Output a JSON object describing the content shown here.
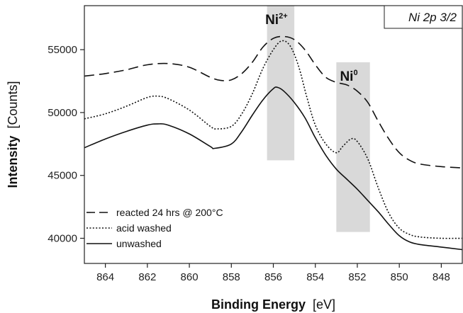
{
  "chart_data": {
    "type": "line",
    "title": "",
    "corner_label": "Ni 2p 3/2",
    "xlabel_bold": "Binding Energy",
    "xlabel_unit": "[eV]",
    "ylabel_bold": "Intensity",
    "ylabel_unit": "[Counts]",
    "xlim": [
      865,
      847
    ],
    "ylim": [
      38000,
      58500
    ],
    "x_ticks": [
      864,
      862,
      860,
      858,
      856,
      854,
      852,
      850,
      848
    ],
    "x_tick_labels": [
      "864",
      "862",
      "860",
      "858",
      "856",
      "854",
      "852",
      "850",
      "848"
    ],
    "y_ticks": [
      40000,
      45000,
      50000,
      55000
    ],
    "y_tick_labels": [
      "40000",
      "45000",
      "50000",
      "55000"
    ],
    "grid": false,
    "legend_position": "bottom-left",
    "bands": [
      {
        "x_range": [
          856.3,
          855.0
        ],
        "y_range": [
          46200,
          58500
        ],
        "label_main": "Ni",
        "label_sup": "2+"
      },
      {
        "x_range": [
          853.0,
          851.4
        ],
        "y_range": [
          40500,
          54000
        ],
        "label_main": "Ni",
        "label_sup": "0"
      }
    ],
    "series": [
      {
        "name": "reacted 24 hrs @ 200°C",
        "style": "dashed",
        "points": [
          [
            865,
            52900
          ],
          [
            864,
            53100
          ],
          [
            863,
            53400
          ],
          [
            862,
            53800
          ],
          [
            861,
            53900
          ],
          [
            860,
            53600
          ],
          [
            859,
            52800
          ],
          [
            858.5,
            52550
          ],
          [
            858,
            52600
          ],
          [
            857.5,
            53100
          ],
          [
            857,
            54000
          ],
          [
            856.5,
            55200
          ],
          [
            856,
            55900
          ],
          [
            855.5,
            56050
          ],
          [
            855,
            55800
          ],
          [
            854.5,
            55000
          ],
          [
            854,
            53800
          ],
          [
            853.5,
            52800
          ],
          [
            853,
            52400
          ],
          [
            852.5,
            52200
          ],
          [
            852,
            51700
          ],
          [
            851.5,
            50800
          ],
          [
            851,
            49300
          ],
          [
            850.5,
            47900
          ],
          [
            850,
            46800
          ],
          [
            849.5,
            46200
          ],
          [
            849,
            45900
          ],
          [
            848,
            45700
          ],
          [
            847,
            45600
          ]
        ]
      },
      {
        "name": "acid washed",
        "style": "dotted",
        "points": [
          [
            865,
            49500
          ],
          [
            864,
            49900
          ],
          [
            863,
            50500
          ],
          [
            862,
            51200
          ],
          [
            861.5,
            51300
          ],
          [
            861,
            51100
          ],
          [
            860,
            50200
          ],
          [
            859,
            48900
          ],
          [
            858.7,
            48700
          ],
          [
            858,
            48900
          ],
          [
            857.5,
            49900
          ],
          [
            857,
            51500
          ],
          [
            856.5,
            53500
          ],
          [
            856,
            55000
          ],
          [
            855.6,
            55700
          ],
          [
            855.2,
            55300
          ],
          [
            854.8,
            53700
          ],
          [
            854.4,
            51200
          ],
          [
            854,
            49000
          ],
          [
            853.5,
            47500
          ],
          [
            853,
            46800
          ],
          [
            852.7,
            47300
          ],
          [
            852.3,
            47900
          ],
          [
            852,
            47700
          ],
          [
            851.5,
            46300
          ],
          [
            851,
            44000
          ],
          [
            850.5,
            42000
          ],
          [
            850,
            40800
          ],
          [
            849.5,
            40300
          ],
          [
            849,
            40100
          ],
          [
            848,
            40000
          ],
          [
            847,
            40000
          ]
        ]
      },
      {
        "name": "unwashed",
        "style": "solid",
        "points": [
          [
            865,
            47200
          ],
          [
            864,
            47900
          ],
          [
            863,
            48500
          ],
          [
            862,
            49000
          ],
          [
            861.5,
            49100
          ],
          [
            861,
            49000
          ],
          [
            860,
            48300
          ],
          [
            859,
            47300
          ],
          [
            858.8,
            47150
          ],
          [
            858,
            47500
          ],
          [
            857.5,
            48500
          ],
          [
            857,
            49800
          ],
          [
            856.5,
            51000
          ],
          [
            856,
            51900
          ],
          [
            855.8,
            52000
          ],
          [
            855.5,
            51700
          ],
          [
            855,
            50800
          ],
          [
            854.5,
            49600
          ],
          [
            854,
            48000
          ],
          [
            853.5,
            46600
          ],
          [
            853,
            45500
          ],
          [
            852.5,
            44700
          ],
          [
            852,
            43900
          ],
          [
            851.5,
            43000
          ],
          [
            851,
            42100
          ],
          [
            850.5,
            41100
          ],
          [
            850,
            40200
          ],
          [
            849.5,
            39700
          ],
          [
            849,
            39500
          ],
          [
            848,
            39300
          ],
          [
            847,
            39100
          ]
        ]
      }
    ]
  }
}
